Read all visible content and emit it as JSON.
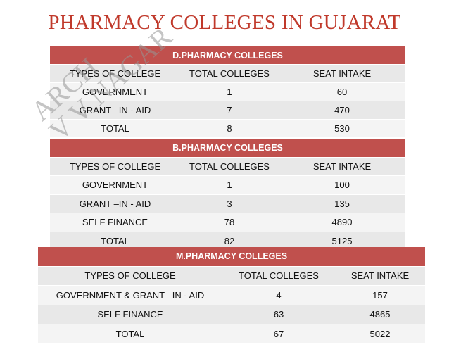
{
  "title": "PHARMACY COLLEGES IN GUJARAT",
  "watermark": {
    "line1": "ARCH",
    "line2": "V V NAGAR"
  },
  "colors": {
    "title": "#c0392b",
    "header": "#c0504d",
    "row_alt": "#e8e8e8"
  },
  "dpharm": {
    "heading": "D.PHARMACY COLLEGES",
    "columns": [
      "TYPES OF COLLEGE",
      "TOTAL COLLEGES",
      "SEAT INTAKE"
    ],
    "rows": [
      [
        "GOVERNMENT",
        "1",
        "60"
      ],
      [
        "GRANT –IN - AID",
        "7",
        "470"
      ],
      [
        "TOTAL",
        "8",
        "530"
      ]
    ]
  },
  "bpharm": {
    "heading": "B.PHARMACY COLLEGES",
    "columns": [
      "TYPES OF COLLEGE",
      "TOTAL COLLEGES",
      "SEAT INTAKE"
    ],
    "rows": [
      [
        "GOVERNMENT",
        "1",
        "100"
      ],
      [
        "GRANT –IN - AID",
        "3",
        "135"
      ],
      [
        "SELF FINANCE",
        "78",
        "4890"
      ],
      [
        "TOTAL",
        "82",
        "5125"
      ]
    ]
  },
  "mpharm": {
    "heading": "M.PHARMACY COLLEGES",
    "columns": [
      "TYPES OF COLLEGE",
      "TOTAL COLLEGES",
      "SEAT INTAKE"
    ],
    "rows": [
      [
        "GOVERNMENT & GRANT –IN - AID",
        "4",
        "157"
      ],
      [
        "SELF FINANCE",
        "63",
        "4865"
      ],
      [
        "TOTAL",
        "67",
        "5022"
      ]
    ]
  }
}
